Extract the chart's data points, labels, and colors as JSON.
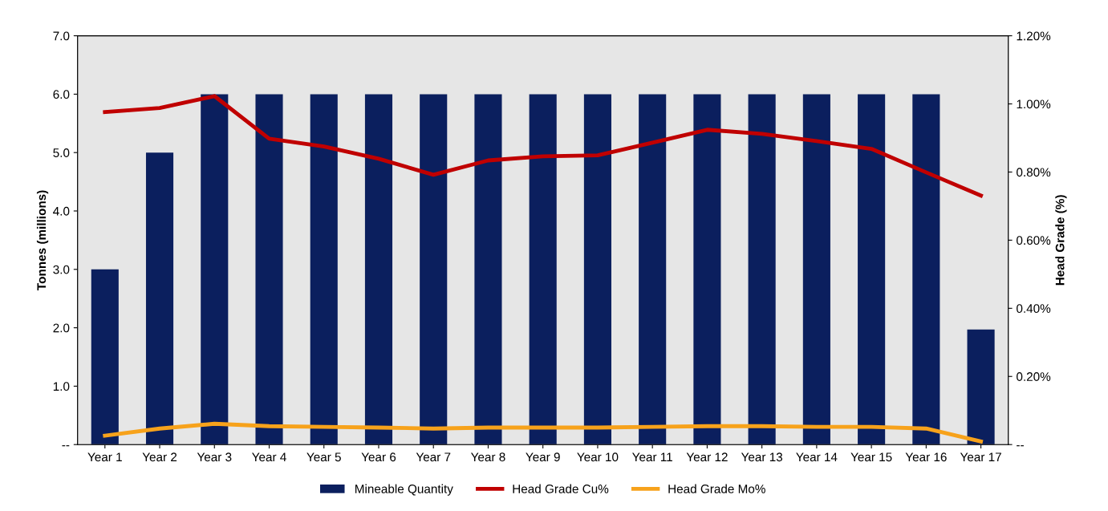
{
  "chart_data": {
    "type": "bar",
    "categories": [
      "Year 1",
      "Year 2",
      "Year 3",
      "Year 4",
      "Year 5",
      "Year 6",
      "Year 7",
      "Year 8",
      "Year 9",
      "Year 10",
      "Year 11",
      "Year 12",
      "Year 13",
      "Year 14",
      "Year 15",
      "Year 16",
      "Year 17"
    ],
    "ylabel": "Tonnes (millions)",
    "y2label": "Head Grade (%)",
    "series": [
      {
        "name": "Mineable Quantity",
        "color": "#0b1f5e",
        "values": [
          3.0,
          5.0,
          6.0,
          6.0,
          6.0,
          6.0,
          6.0,
          6.0,
          6.0,
          6.0,
          6.0,
          6.0,
          6.0,
          6.0,
          6.0,
          6.0,
          1.97
        ]
      },
      {
        "name": "Head Grade Cu%",
        "type": "line",
        "axis": "y2",
        "color": "#c00000",
        "values": [
          0.976,
          0.988,
          1.023,
          0.898,
          0.875,
          0.839,
          0.792,
          0.834,
          0.846,
          0.849,
          0.886,
          0.924,
          0.912,
          0.891,
          0.868,
          0.799,
          0.731
        ]
      },
      {
        "name": "Head Grade Mo%",
        "type": "line",
        "axis": "y2",
        "color": "#f7a21b",
        "values": [
          0.026,
          0.047,
          0.061,
          0.054,
          0.052,
          0.05,
          0.047,
          0.05,
          0.05,
          0.05,
          0.052,
          0.054,
          0.054,
          0.052,
          0.052,
          0.047,
          0.009
        ]
      }
    ],
    "ylim": [
      0,
      7
    ],
    "yticks": [
      {
        "value": 0,
        "label": "--"
      },
      {
        "value": 1,
        "label": "1.0"
      },
      {
        "value": 2,
        "label": "2.0"
      },
      {
        "value": 3,
        "label": "3.0"
      },
      {
        "value": 4,
        "label": "4.0"
      },
      {
        "value": 5,
        "label": "5.0"
      },
      {
        "value": 6,
        "label": "6.0"
      },
      {
        "value": 7,
        "label": "7.0"
      }
    ],
    "y2lim": [
      0,
      1.2
    ],
    "y2ticks": [
      {
        "value": 0,
        "label": "--"
      },
      {
        "value": 0.2,
        "label": "0.20%"
      },
      {
        "value": 0.4,
        "label": "0.40%"
      },
      {
        "value": 0.6,
        "label": "0.60%"
      },
      {
        "value": 0.8,
        "label": "0.80%"
      },
      {
        "value": 1.0,
        "label": "1.00%"
      },
      {
        "value": 1.2,
        "label": "1.20%"
      }
    ],
    "grid": false,
    "legend": "bottom",
    "marker": "none",
    "line_style": "solid"
  }
}
